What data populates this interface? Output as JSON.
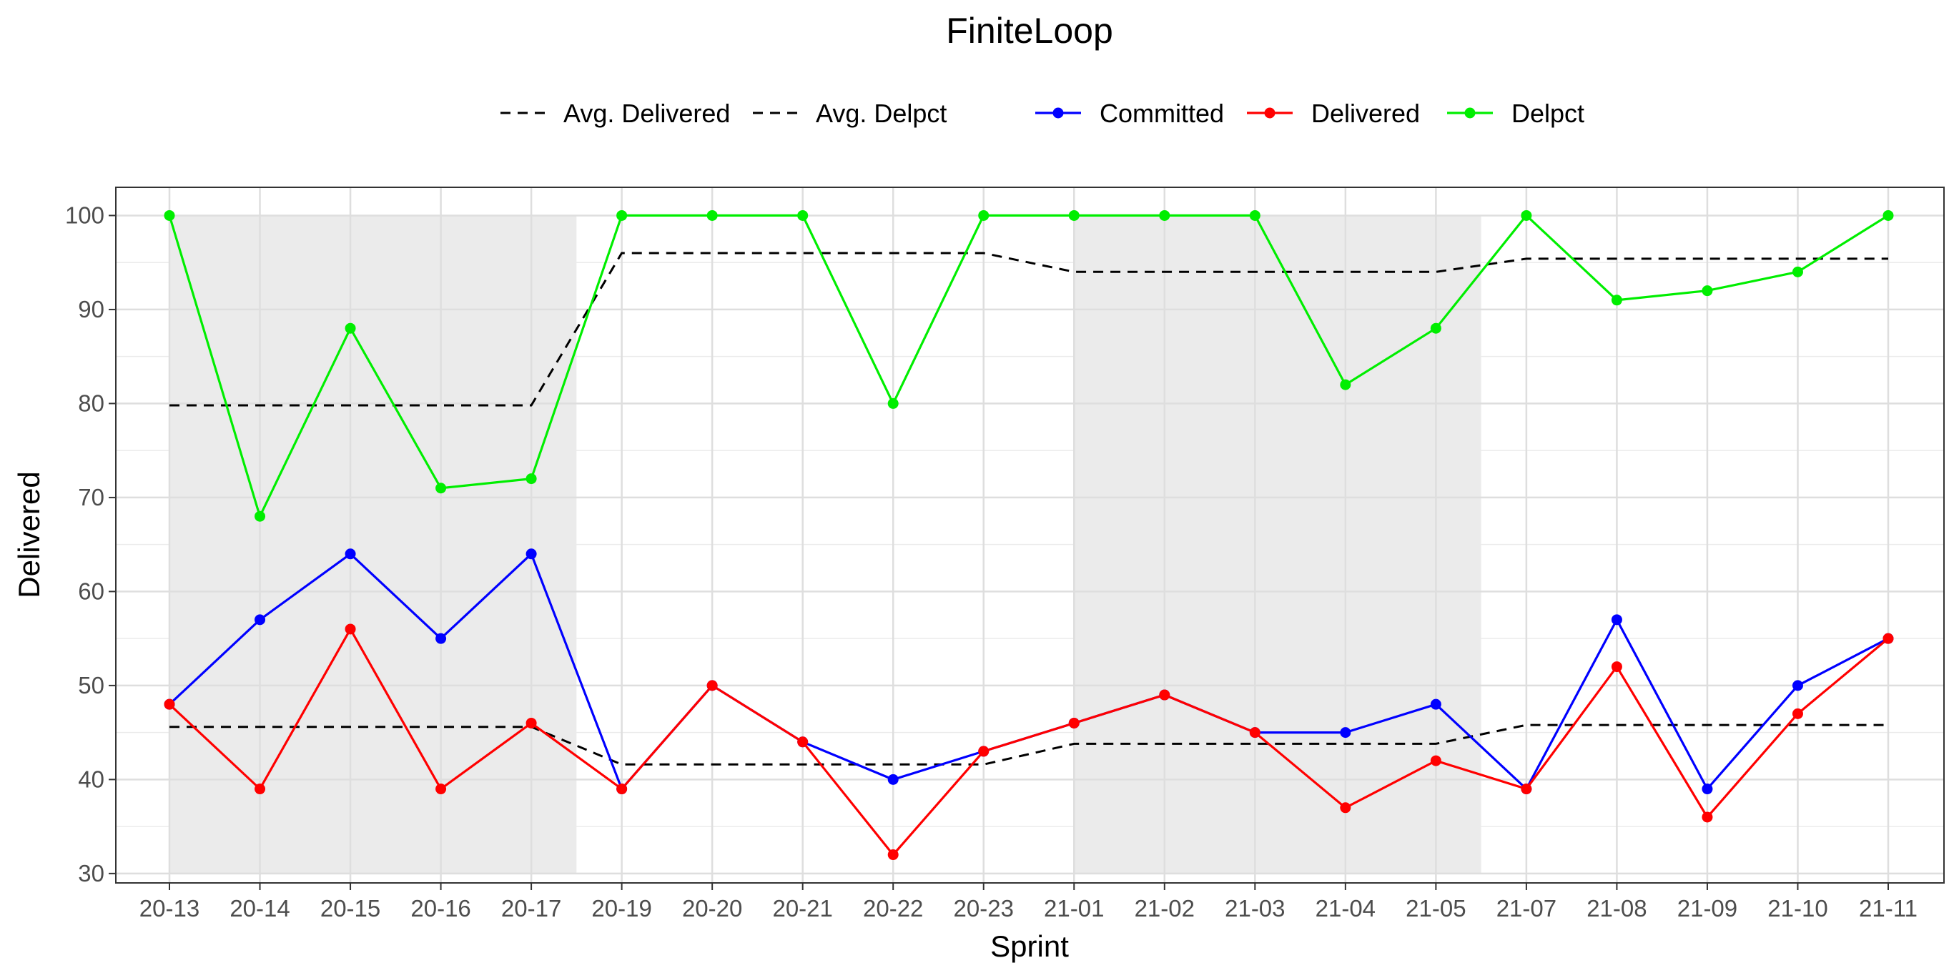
{
  "chart_data": {
    "type": "line",
    "title": "FiniteLoop",
    "xlabel": "Sprint",
    "ylabel": "Delivered",
    "categories": [
      "20-13",
      "20-14",
      "20-15",
      "20-16",
      "20-17",
      "20-19",
      "20-20",
      "20-21",
      "20-22",
      "20-23",
      "21-01",
      "21-02",
      "21-03",
      "21-04",
      "21-05",
      "21-07",
      "21-08",
      "21-09",
      "21-10",
      "21-11"
    ],
    "ylim": [
      29,
      103
    ],
    "yticks": [
      30,
      40,
      50,
      60,
      70,
      80,
      90,
      100
    ],
    "grid": true,
    "legend_position": "top",
    "shaded_bands": [
      {
        "from": "20-13",
        "to": "20-17",
        "ymin": 30,
        "ymax": 100
      },
      {
        "from": "21-01",
        "to": "21-05",
        "ymin": 30,
        "ymax": 100
      }
    ],
    "series": [
      {
        "name": "Committed",
        "color": "#0000ff",
        "style": "solid",
        "values": [
          48,
          57,
          64,
          55,
          64,
          39,
          50,
          44,
          40,
          43,
          46,
          49,
          45,
          45,
          48,
          39,
          57,
          39,
          50,
          55
        ]
      },
      {
        "name": "Delivered",
        "color": "#ff0000",
        "style": "solid",
        "values": [
          48,
          39,
          56,
          39,
          46,
          39,
          50,
          44,
          32,
          43,
          46,
          49,
          45,
          37,
          42,
          39,
          52,
          36,
          47,
          55
        ]
      },
      {
        "name": "Delpct",
        "color": "#00ee00",
        "style": "solid",
        "values": [
          100,
          68,
          88,
          71,
          72,
          100,
          100,
          100,
          80,
          100,
          100,
          100,
          100,
          82,
          88,
          100,
          91,
          92,
          94,
          100
        ]
      }
    ],
    "reference_lines": [
      {
        "name": "Avg. Delivered",
        "color": "#000000",
        "style": "dashed",
        "values": [
          45.6,
          45.6,
          45.6,
          45.6,
          45.6,
          41.6,
          41.6,
          41.6,
          41.6,
          41.6,
          43.8,
          43.8,
          43.8,
          43.8,
          43.8,
          45.8,
          45.8,
          45.8,
          45.8,
          45.8
        ]
      },
      {
        "name": "Avg. Delpct",
        "color": "#000000",
        "style": "dashed",
        "values": [
          79.8,
          79.8,
          79.8,
          79.8,
          79.8,
          96,
          96,
          96,
          96,
          96,
          94,
          94,
          94,
          94,
          94,
          95.4,
          95.4,
          95.4,
          95.4,
          95.4
        ]
      }
    ],
    "legend": {
      "dashed_entries": [
        "Avg. Delivered",
        "Avg. Delpct"
      ],
      "point_entries": [
        "Committed",
        "Delivered",
        "Delpct"
      ]
    }
  }
}
